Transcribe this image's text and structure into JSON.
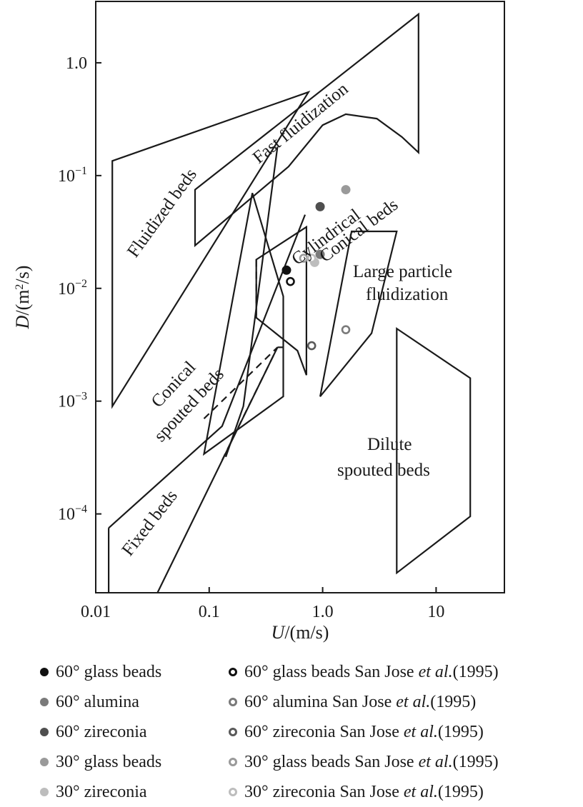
{
  "chart_data": {
    "type": "scatter",
    "xlabel": "U/(m/s)",
    "ylabel": "D/(m²/s)",
    "xscale": "log",
    "yscale": "log",
    "xlim": [
      0.01,
      40
    ],
    "ylim": [
      2e-05,
      3.5
    ],
    "x_ticks": [
      {
        "value": 0.01,
        "label": "0.01"
      },
      {
        "value": 0.1,
        "label": "0.1"
      },
      {
        "value": 1.0,
        "label": "1.0"
      },
      {
        "value": 10,
        "label": "10"
      }
    ],
    "y_ticks": [
      {
        "value": 0.0001,
        "base": "10",
        "exp": "−4"
      },
      {
        "value": 0.001,
        "base": "10",
        "exp": "−3"
      },
      {
        "value": 0.01,
        "base": "10",
        "exp": "−2"
      },
      {
        "value": 0.1,
        "base": "10",
        "exp": "−1"
      },
      {
        "value": 1.0,
        "base": "1.0",
        "exp": ""
      }
    ],
    "regions": [
      {
        "name": "fluidized-beds",
        "labels": [
          "Fluidized beds"
        ],
        "dashed": false,
        "points": [
          [
            0.014,
            0.135
          ],
          [
            0.75,
            0.55
          ],
          [
            0.014,
            0.0009
          ]
        ]
      },
      {
        "name": "fast-fluidization",
        "labels": [
          "Fast fluidization"
        ],
        "dashed": false,
        "points": [
          [
            0.075,
            0.075
          ],
          [
            7.0,
            2.7
          ],
          [
            7.0,
            0.16
          ],
          [
            5.0,
            0.22
          ],
          [
            3.0,
            0.32
          ],
          [
            1.6,
            0.35
          ],
          [
            1.0,
            0.28
          ],
          [
            0.5,
            0.12
          ],
          [
            0.075,
            0.024
          ]
        ]
      },
      {
        "name": "conical-spouted-beds",
        "labels": [
          "Conical",
          "spouted beds"
        ],
        "dashed": false,
        "points": [
          [
            0.09,
            0.00034
          ],
          [
            0.24,
            0.07
          ],
          [
            0.45,
            0.0085
          ],
          [
            0.45,
            0.0011
          ],
          [
            0.09,
            0.00034
          ]
        ]
      },
      {
        "name": "cylindrical-spouted-beds",
        "labels": [
          "Cylindrical"
        ],
        "dashed": false,
        "points": [
          [
            0.26,
            0.018
          ],
          [
            0.72,
            0.035
          ],
          [
            0.72,
            0.0017
          ],
          [
            0.6,
            0.0028
          ],
          [
            0.26,
            0.0055
          ]
        ]
      },
      {
        "name": "conical-beds",
        "labels": [
          "Conical beds"
        ],
        "dashed": false,
        "points": [
          [
            0.95,
            0.0011
          ],
          [
            1.8,
            0.032
          ],
          [
            4.5,
            0.032
          ],
          [
            2.7,
            0.004
          ],
          [
            0.95,
            0.0011
          ]
        ]
      },
      {
        "name": "dilute-spouted-beds",
        "labels": [
          "Dilute",
          "spouted beds"
        ],
        "dashed": false,
        "points": [
          [
            4.5,
            0.0044
          ],
          [
            20,
            0.0016
          ],
          [
            20,
            9.5e-05
          ],
          [
            4.5,
            3e-05
          ],
          [
            4.5,
            0.0044
          ]
        ]
      }
    ],
    "lines": [
      {
        "dashed": false,
        "points": [
          [
            0.013,
            7.5e-05
          ],
          [
            0.013,
            2e-05
          ]
        ]
      },
      {
        "dashed": false,
        "points": [
          [
            0.013,
            7.5e-05
          ],
          [
            0.13,
            0.0006
          ],
          [
            0.7,
            0.045
          ]
        ]
      },
      {
        "dashed": false,
        "points": [
          [
            0.011,
            2e-05
          ],
          [
            0.011,
            2e-05
          ]
        ]
      },
      {
        "dashed": false,
        "points": [
          [
            0.035,
            2e-05
          ],
          [
            0.4,
            0.003
          ]
        ]
      },
      {
        "dashed": false,
        "points": [
          [
            0.14,
            0.00032
          ],
          [
            0.2,
            0.0009
          ],
          [
            0.4,
            0.18
          ]
        ]
      },
      {
        "dashed": true,
        "points": [
          [
            0.09,
            0.0007
          ],
          [
            0.4,
            0.003
          ]
        ]
      },
      {
        "dashed": true,
        "points": [
          [
            0.13,
            0.0003
          ],
          [
            0.4,
            0.003
          ]
        ]
      },
      {
        "dashed": true,
        "points": [
          [
            0.4,
            0.003
          ],
          [
            0.45,
            0.003
          ]
        ]
      },
      {
        "dashed": true,
        "points": [
          [
            0.26,
            0.018
          ],
          [
            0.26,
            0.0055
          ]
        ]
      }
    ],
    "series": [
      {
        "name": "60° glass beads",
        "marker": "filled",
        "color": "#111111",
        "points": [
          [
            0.48,
            0.0145
          ]
        ]
      },
      {
        "name": "60° alumina",
        "marker": "filled",
        "color": "#7a7a7a",
        "points": [
          [
            0.95,
            0.02
          ]
        ]
      },
      {
        "name": "60° zireconia",
        "marker": "filled",
        "color": "#4f4f4f",
        "points": [
          [
            0.95,
            0.053
          ]
        ]
      },
      {
        "name": "30° glass beads",
        "marker": "filled",
        "color": "#9a9a9a",
        "points": [
          [
            1.6,
            0.075
          ]
        ]
      },
      {
        "name": "30° zireconia",
        "marker": "filled",
        "color": "#bdbdbd",
        "points": [
          [
            0.85,
            0.017
          ]
        ]
      },
      {
        "name": "60° glass beads San Jose et al.(1995)",
        "marker": "hollow",
        "color": "#111111",
        "points": [
          [
            0.52,
            0.0115
          ]
        ]
      },
      {
        "name": "60° alumina San Jose et al.(1995)",
        "marker": "hollow",
        "color": "#7a7a7a",
        "points": [
          [
            1.6,
            0.0043
          ]
        ]
      },
      {
        "name": "60° zireconia San Jose et al.(1995)",
        "marker": "hollow",
        "color": "#5a5a5a",
        "points": [
          [
            0.8,
            0.0031
          ]
        ]
      },
      {
        "name": "30° glass beads San Jose et al.(1995)",
        "marker": "hollow",
        "color": "#9a9a9a",
        "points": [
          [
            0.68,
            0.0185
          ]
        ]
      },
      {
        "name": "30° zireconia San Jose et al.(1995)",
        "marker": "hollow",
        "color": "#bdbdbd",
        "points": [
          [
            0.8,
            0.0185
          ]
        ]
      }
    ],
    "region_text": {
      "fluidized_beds": "Fluidized beds",
      "fast_fluidization": "Fast fluidization",
      "cylindrical": "Cylindrical",
      "conical_beds": "Conical beds",
      "large_particle_1": "Large particle",
      "large_particle_2": "fluidization",
      "conical_1": "Conical",
      "conical_2": "spouted beds",
      "dilute_1": "Dilute",
      "dilute_2": "spouted beds",
      "fixed_beds": "Fixed beds"
    },
    "legend": {
      "left": [
        {
          "label": "60° glass beads",
          "marker": "filled",
          "color": "#111111"
        },
        {
          "label": "60° alumina",
          "marker": "filled",
          "color": "#7a7a7a"
        },
        {
          "label": "60° zireconia",
          "marker": "filled",
          "color": "#4f4f4f"
        },
        {
          "label": "30° glass beads",
          "marker": "filled",
          "color": "#9a9a9a"
        },
        {
          "label": "30° zireconia",
          "marker": "filled",
          "color": "#bdbdbd"
        }
      ],
      "right": [
        {
          "label": "60° glass beads San Jose ",
          "italic": "et al.",
          "suffix": "(1995)",
          "marker": "hollow",
          "color": "#111111"
        },
        {
          "label": "60° alumina San Jose ",
          "italic": "et al.",
          "suffix": "(1995)",
          "marker": "hollow",
          "color": "#7a7a7a"
        },
        {
          "label": "60° zireconia San Jose ",
          "italic": "et al.",
          "suffix": "(1995)",
          "marker": "hollow",
          "color": "#5a5a5a"
        },
        {
          "label": "30° glass beads San Jose ",
          "italic": "et al.",
          "suffix": "(1995)",
          "marker": "hollow",
          "color": "#9a9a9a"
        },
        {
          "label": "30° zireconia San Jose ",
          "italic": "et al.",
          "suffix": "(1995)",
          "marker": "hollow",
          "color": "#bdbdbd"
        }
      ]
    }
  }
}
